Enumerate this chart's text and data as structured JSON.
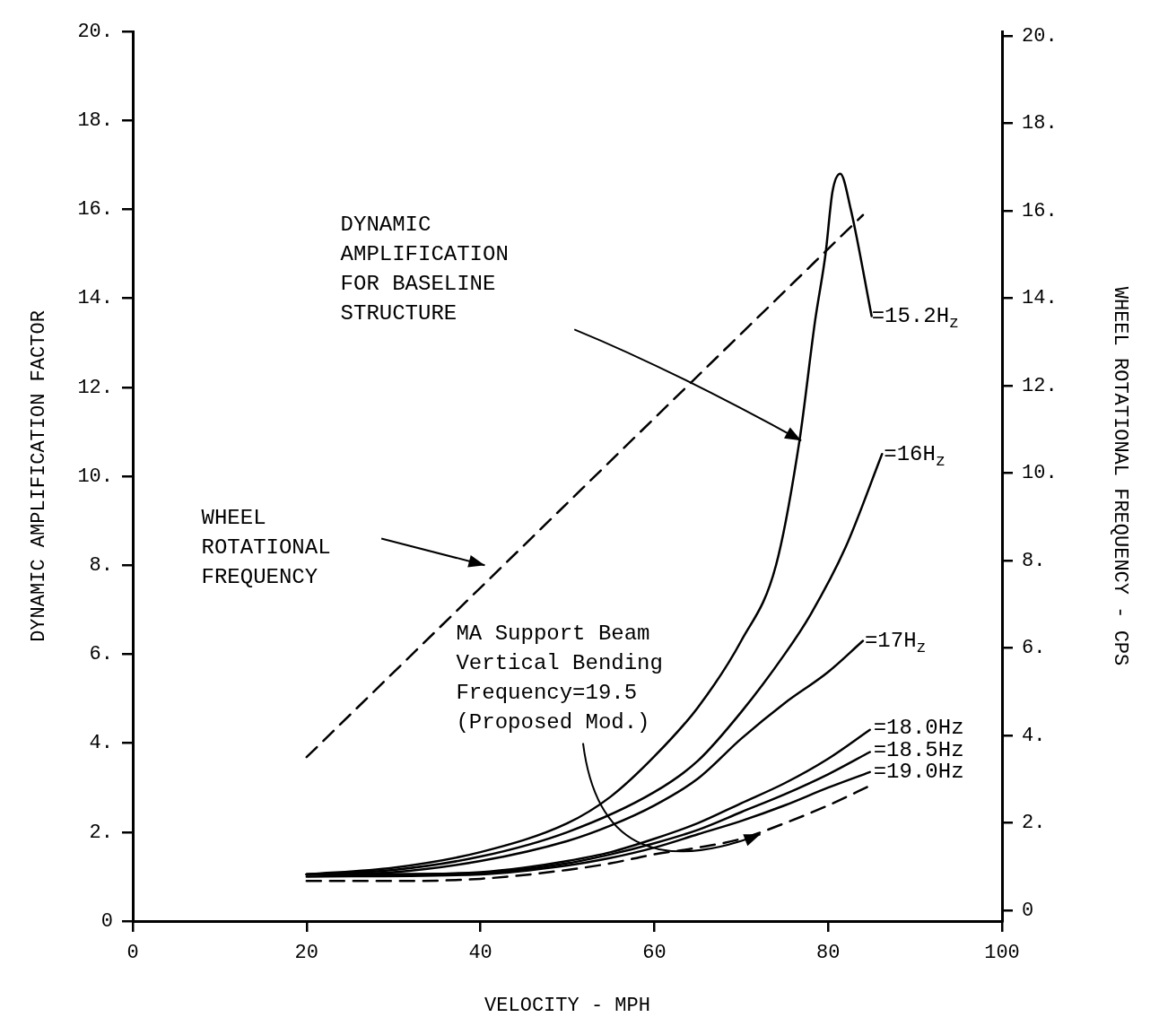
{
  "chart_data": {
    "type": "line",
    "xlabel": "VELOCITY - MPH",
    "ylabel": "DYNAMIC AMPLIFICATION FACTOR",
    "y2label": "WHEEL ROTATIONAL FREQUENCY - CPS",
    "xlim": [
      0,
      100
    ],
    "xticks": [
      0,
      20,
      40,
      60,
      80,
      100
    ],
    "ylim": [
      0,
      20
    ],
    "yticks": [
      {
        "value": 0,
        "label": "0"
      },
      {
        "value": 2,
        "label": "2."
      },
      {
        "value": 4,
        "label": "4."
      },
      {
        "value": 6,
        "label": "6."
      },
      {
        "value": 8,
        "label": "8."
      },
      {
        "value": 10,
        "label": "10."
      },
      {
        "value": 12,
        "label": "12."
      },
      {
        "value": 14,
        "label": "14."
      },
      {
        "value": 16,
        "label": "16."
      },
      {
        "value": 18,
        "label": "18."
      },
      {
        "value": 20,
        "label": "20."
      }
    ],
    "y2lim": [
      -0.25,
      20.1
    ],
    "y2ticks": [
      {
        "value": 0,
        "label": "0"
      },
      {
        "value": 2,
        "label": "2."
      },
      {
        "value": 4,
        "label": "4."
      },
      {
        "value": 6,
        "label": "6."
      },
      {
        "value": 8,
        "label": "8."
      },
      {
        "value": 10,
        "label": "10."
      },
      {
        "value": 12,
        "label": "12."
      },
      {
        "value": 14,
        "label": "14."
      },
      {
        "value": 16,
        "label": "16."
      },
      {
        "value": 18,
        "label": "18."
      },
      {
        "value": 20,
        "label": "20."
      }
    ],
    "grid": false,
    "legend": false,
    "marker": "none",
    "series": [
      {
        "name": "=15.2H$_{z}$",
        "color": "#000000",
        "line_style": "solid",
        "x": [
          20,
          30,
          40,
          50,
          55,
          60,
          65,
          70,
          74,
          76.7,
          78.5,
          79.7,
          80.5,
          81.4,
          82.6,
          85
        ],
        "values": [
          1.05,
          1.2,
          1.55,
          2.2,
          2.8,
          3.7,
          4.8,
          6.3,
          8.0,
          10.8,
          13.5,
          15.0,
          16.4,
          16.8,
          16.0,
          13.6
        ]
      },
      {
        "name": "=16H$_{z}$",
        "color": "#000000",
        "line_style": "solid",
        "x": [
          20,
          30,
          40,
          50,
          60,
          65,
          70,
          75,
          78,
          82,
          86.2
        ],
        "values": [
          1.05,
          1.15,
          1.45,
          2.0,
          2.9,
          3.6,
          4.7,
          6.0,
          6.9,
          8.4,
          10.5
        ]
      },
      {
        "name": "=17H$_{z}$",
        "color": "#000000",
        "line_style": "solid",
        "x": [
          20,
          30,
          40,
          50,
          55,
          60,
          65,
          70,
          75,
          80,
          84
        ],
        "values": [
          1.05,
          1.1,
          1.35,
          1.8,
          2.15,
          2.6,
          3.2,
          4.1,
          4.9,
          5.6,
          6.3
        ]
      },
      {
        "name": "=18.0Hz",
        "color": "#000000",
        "line_style": "solid",
        "x": [
          20,
          30,
          40,
          45,
          50,
          55,
          60,
          65,
          70,
          75,
          80,
          84.8
        ],
        "values": [
          1.05,
          1.05,
          1.1,
          1.2,
          1.35,
          1.55,
          1.85,
          2.2,
          2.65,
          3.1,
          3.65,
          4.3
        ]
      },
      {
        "name": "=18.5Hz",
        "color": "#000000",
        "line_style": "solid",
        "x": [
          20,
          40,
          50,
          55,
          60,
          65,
          70,
          75,
          80,
          84.8
        ],
        "values": [
          1.05,
          1.08,
          1.3,
          1.5,
          1.75,
          2.05,
          2.45,
          2.85,
          3.3,
          3.8
        ]
      },
      {
        "name": "=19.0Hz",
        "color": "#000000",
        "line_style": "solid",
        "x": [
          20,
          40,
          50,
          55,
          60,
          65,
          70,
          75,
          80,
          84.8
        ],
        "values": [
          1.0,
          1.05,
          1.25,
          1.42,
          1.65,
          1.95,
          2.25,
          2.6,
          3.0,
          3.35
        ]
      },
      {
        "color": "#000000",
        "line_style": "dashed",
        "x": [
          20,
          30,
          40,
          50,
          55,
          60,
          65,
          70,
          75,
          80,
          85
        ],
        "values": [
          0.9,
          0.9,
          0.95,
          1.15,
          1.3,
          1.5,
          1.65,
          1.85,
          2.2,
          2.6,
          3.06
        ]
      },
      {
        "color": "#000000",
        "line_style": "dashed",
        "axis": "y2",
        "x": [
          20,
          84
        ],
        "values": [
          3.5,
          15.9
        ]
      }
    ],
    "annotations": [
      "DYNAMIC\nAMPLIFICATION\nFOR BASELINE\nSTRUCTURE",
      "WHEEL\nROTATIONAL\nFREQUENCY",
      {
        "text": "MA Support Beam\nVertical Bending\nFrequency=19.5\n(Proposed Mod.)",
        "x": 72.2,
        "y": 1.95
      }
    ]
  }
}
